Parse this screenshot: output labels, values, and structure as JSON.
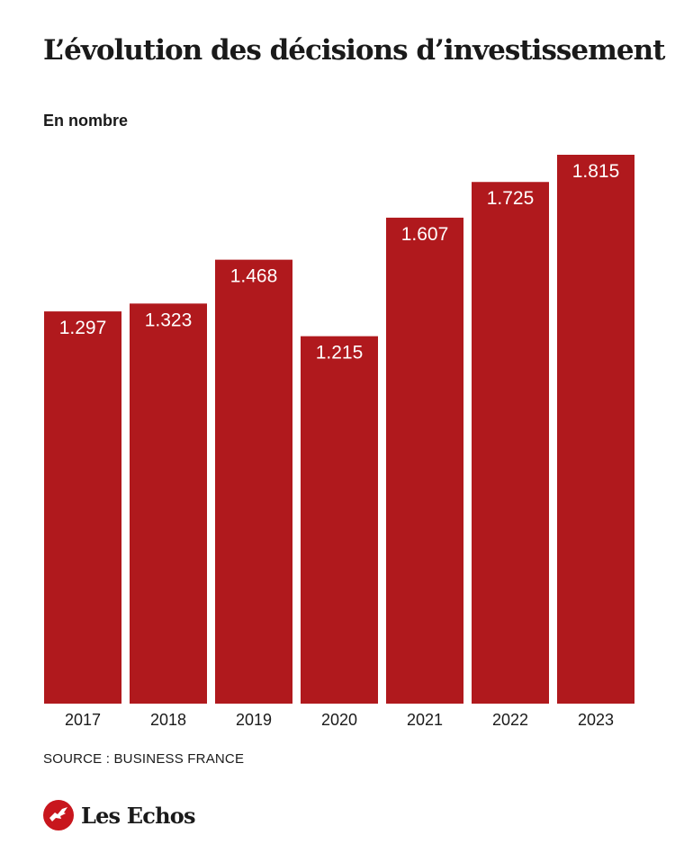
{
  "header": {
    "title": "L’évolution des décisions d’investissement",
    "subtitle": "En nombre"
  },
  "chart_data": {
    "type": "bar",
    "title": "L’évolution des décisions d’investissement",
    "subtitle": "En nombre",
    "categories": [
      "2017",
      "2018",
      "2019",
      "2020",
      "2021",
      "2022",
      "2023"
    ],
    "values": [
      1297,
      1323,
      1468,
      1215,
      1607,
      1725,
      1815
    ],
    "data_labels": [
      "1.297",
      "1.323",
      "1.468",
      "1.215",
      "1.607",
      "1.725",
      "1.815"
    ],
    "bar_color": "#b0191d",
    "label_color": "#ffffff",
    "ylim": [
      0,
      1815
    ],
    "grid": false,
    "legend": "none"
  },
  "footer": {
    "source": "SOURCE : BUSINESS FRANCE",
    "logo_text": "Les Echos",
    "logo_icon": "les-echos-logo-icon",
    "logo_color": "#c8161d"
  }
}
